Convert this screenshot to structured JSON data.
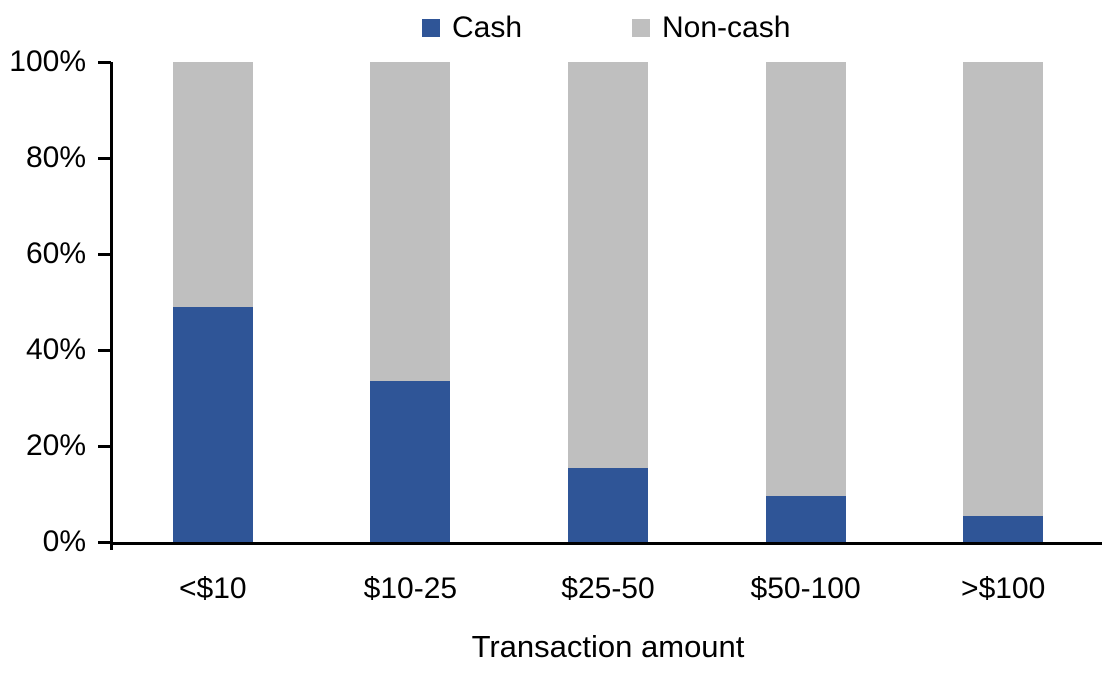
{
  "chart_data": {
    "type": "bar",
    "stacked": true,
    "percent_stacked": true,
    "title": "",
    "xlabel": "Transaction amount",
    "ylabel": "",
    "categories": [
      "<$10",
      "$10-25",
      "$25-50",
      "$50-100",
      ">$100"
    ],
    "series": [
      {
        "name": "Cash",
        "color": "#2F5597",
        "values": [
          49,
          33.5,
          15.5,
          9.5,
          5.5
        ]
      },
      {
        "name": "Non-cash",
        "color": "#BFBFBF",
        "values": [
          51,
          66.5,
          84.5,
          90.5,
          94.5
        ]
      }
    ],
    "y_ticks": [
      "0%",
      "20%",
      "40%",
      "60%",
      "80%",
      "100%"
    ],
    "ylim": [
      0,
      100
    ],
    "legend_position": "top",
    "grid": false,
    "axis_color": "#000000",
    "background_color": "#FFFFFF"
  }
}
